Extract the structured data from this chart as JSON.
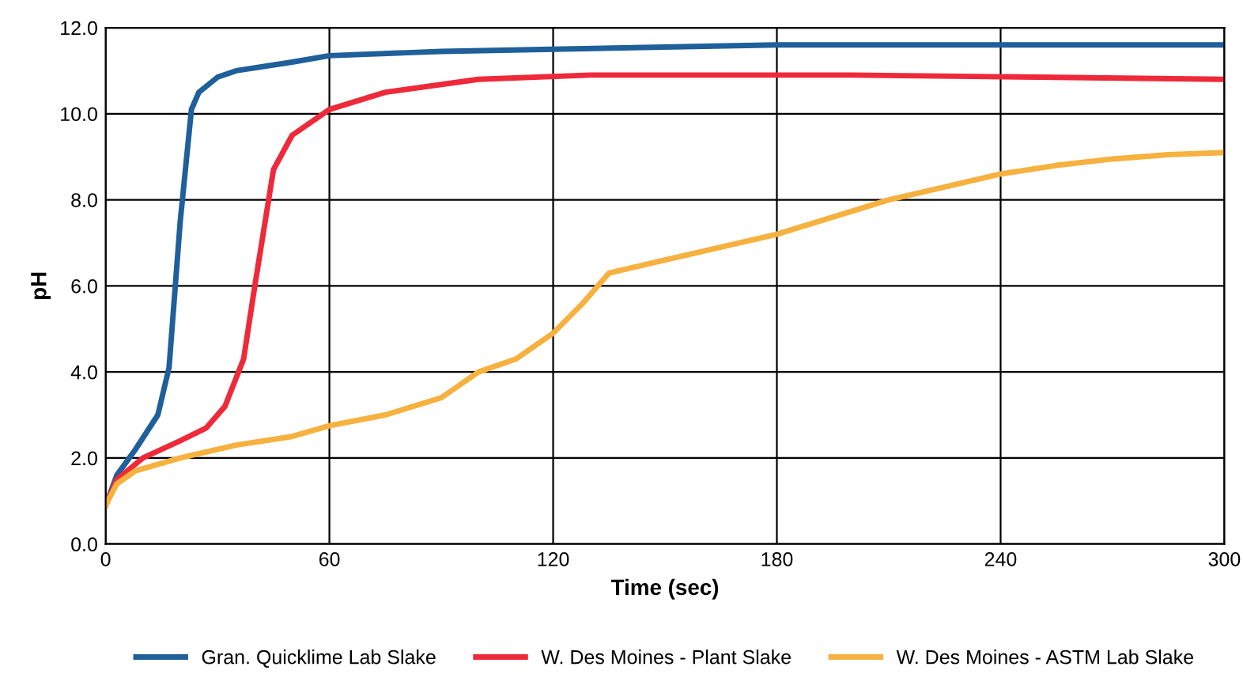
{
  "chart_data": {
    "type": "line",
    "xlabel": "Time (sec)",
    "ylabel": "pH",
    "xlim": [
      0,
      300
    ],
    "xticks": [
      0,
      60,
      120,
      180,
      240,
      300
    ],
    "ylim": [
      0,
      12
    ],
    "yticks": [
      {
        "value": 0,
        "label": "0.0"
      },
      {
        "value": 2,
        "label": "2.0"
      },
      {
        "value": 4,
        "label": "4.0"
      },
      {
        "value": 6,
        "label": "6.0"
      },
      {
        "value": 8,
        "label": "8.0"
      },
      {
        "value": 10,
        "label": "10.0"
      },
      {
        "value": 12,
        "label": "12.0"
      }
    ],
    "grid": true,
    "legend": "bottom",
    "marker": "none",
    "line_style": "solid",
    "series": [
      {
        "name": "Gran. Quicklime Lab Slake",
        "color": "#1f5f9a",
        "x": [
          0,
          3,
          8,
          14,
          17,
          20,
          23,
          25,
          30,
          35,
          50,
          60,
          90,
          120,
          180,
          240,
          300
        ],
        "values": [
          0.9,
          1.6,
          2.2,
          3.0,
          4.1,
          7.5,
          10.1,
          10.5,
          10.85,
          11.0,
          11.2,
          11.35,
          11.45,
          11.5,
          11.6,
          11.6,
          11.6
        ]
      },
      {
        "name": "W. Des Moines - Plant Slake",
        "color": "#ee2a3a",
        "x": [
          0,
          3,
          10,
          20,
          27,
          32,
          37,
          40,
          45,
          50,
          60,
          75,
          100,
          130,
          200,
          250,
          300
        ],
        "values": [
          0.9,
          1.5,
          2.0,
          2.4,
          2.7,
          3.2,
          4.3,
          6.0,
          8.7,
          9.5,
          10.1,
          10.5,
          10.8,
          10.9,
          10.9,
          10.85,
          10.8
        ]
      },
      {
        "name": "W. Des Moines - ASTM Lab Slake",
        "color": "#f6b13f",
        "x": [
          0,
          3,
          8,
          20,
          35,
          50,
          60,
          75,
          90,
          100,
          110,
          120,
          128,
          135,
          150,
          165,
          180,
          195,
          210,
          225,
          240,
          255,
          270,
          285,
          300
        ],
        "values": [
          0.9,
          1.4,
          1.7,
          2.0,
          2.3,
          2.5,
          2.75,
          3.0,
          3.4,
          4.0,
          4.3,
          4.9,
          5.6,
          6.3,
          6.6,
          6.9,
          7.2,
          7.6,
          8.0,
          8.3,
          8.6,
          8.8,
          8.95,
          9.05,
          9.1
        ]
      }
    ]
  }
}
